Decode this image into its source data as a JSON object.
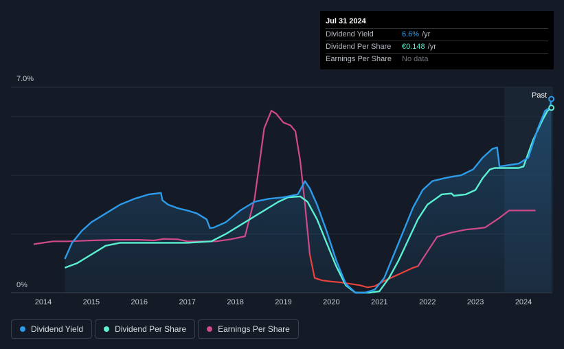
{
  "tooltip": {
    "date": "Jul 31 2024",
    "rows": [
      {
        "label": "Dividend Yield",
        "value": "6.6%",
        "unit": " /yr",
        "color": "#2d9be9"
      },
      {
        "label": "Dividend Per Share",
        "value": "€0.148",
        "unit": " /yr",
        "color": "#5cf0d2"
      },
      {
        "label": "Earnings Per Share",
        "value": "",
        "unit": "",
        "nodata": "No data"
      }
    ]
  },
  "past_label": "Past",
  "legend": [
    {
      "label": "Dividend Yield",
      "color": "#2d9be9"
    },
    {
      "label": "Dividend Per Share",
      "color": "#5cf0d2"
    },
    {
      "label": "Earnings Per Share",
      "color": "#d04a8a"
    }
  ],
  "chart_data": {
    "type": "line",
    "title": "",
    "xlabel": "",
    "ylabel": "",
    "xlim": [
      2013.8,
      2024.6
    ],
    "ylim": [
      0,
      7.0
    ],
    "y_tick_labels": [
      {
        "value": 7.0,
        "label": "7.0%"
      },
      {
        "value": 0,
        "label": "0%"
      }
    ],
    "x_ticks": [
      2014,
      2015,
      2016,
      2017,
      2018,
      2019,
      2020,
      2021,
      2022,
      2023,
      2024
    ],
    "x_tick_labels": [
      "2014",
      "2015",
      "2016",
      "2017",
      "2018",
      "2019",
      "2020",
      "2021",
      "2022",
      "2023",
      "2024"
    ],
    "past_region_start": 2023.6,
    "series": [
      {
        "name": "Dividend Yield",
        "color": "#2d9be9",
        "fill": true,
        "points": [
          [
            2014.45,
            1.15
          ],
          [
            2014.6,
            1.7
          ],
          [
            2014.8,
            2.1
          ],
          [
            2015.0,
            2.4
          ],
          [
            2015.3,
            2.7
          ],
          [
            2015.6,
            3.0
          ],
          [
            2015.9,
            3.2
          ],
          [
            2016.2,
            3.35
          ],
          [
            2016.45,
            3.4
          ],
          [
            2016.48,
            3.15
          ],
          [
            2016.6,
            3.0
          ],
          [
            2016.8,
            2.88
          ],
          [
            2017.0,
            2.8
          ],
          [
            2017.2,
            2.7
          ],
          [
            2017.4,
            2.5
          ],
          [
            2017.47,
            2.2
          ],
          [
            2017.55,
            2.22
          ],
          [
            2017.8,
            2.4
          ],
          [
            2018.1,
            2.8
          ],
          [
            2018.4,
            3.1
          ],
          [
            2018.7,
            3.2
          ],
          [
            2019.0,
            3.25
          ],
          [
            2019.3,
            3.35
          ],
          [
            2019.45,
            3.8
          ],
          [
            2019.55,
            3.55
          ],
          [
            2019.7,
            3.0
          ],
          [
            2019.9,
            2.1
          ],
          [
            2020.1,
            1.1
          ],
          [
            2020.3,
            0.3
          ],
          [
            2020.5,
            0.0
          ],
          [
            2020.7,
            0.0
          ],
          [
            2020.9,
            0.1
          ],
          [
            2021.1,
            0.5
          ],
          [
            2021.3,
            1.3
          ],
          [
            2021.5,
            2.1
          ],
          [
            2021.7,
            2.9
          ],
          [
            2021.9,
            3.5
          ],
          [
            2022.1,
            3.8
          ],
          [
            2022.35,
            3.9
          ],
          [
            2022.5,
            3.95
          ],
          [
            2022.7,
            4.0
          ],
          [
            2022.95,
            4.2
          ],
          [
            2023.15,
            4.6
          ],
          [
            2023.35,
            4.9
          ],
          [
            2023.45,
            4.95
          ],
          [
            2023.5,
            4.3
          ],
          [
            2023.7,
            4.35
          ],
          [
            2023.9,
            4.4
          ],
          [
            2024.1,
            4.6
          ],
          [
            2024.3,
            5.6
          ],
          [
            2024.45,
            6.2
          ],
          [
            2024.55,
            6.3
          ],
          [
            2024.58,
            6.6
          ]
        ]
      },
      {
        "name": "Dividend Per Share",
        "color": "#5cf0d2",
        "fill": false,
        "points": [
          [
            2014.45,
            0.85
          ],
          [
            2014.7,
            1.0
          ],
          [
            2015.0,
            1.3
          ],
          [
            2015.3,
            1.6
          ],
          [
            2015.6,
            1.7
          ],
          [
            2016.0,
            1.7
          ],
          [
            2016.5,
            1.7
          ],
          [
            2017.0,
            1.7
          ],
          [
            2017.5,
            1.75
          ],
          [
            2017.8,
            2.0
          ],
          [
            2018.1,
            2.3
          ],
          [
            2018.4,
            2.6
          ],
          [
            2018.7,
            2.9
          ],
          [
            2018.9,
            3.1
          ],
          [
            2019.1,
            3.25
          ],
          [
            2019.35,
            3.28
          ],
          [
            2019.5,
            3.1
          ],
          [
            2019.7,
            2.5
          ],
          [
            2019.9,
            1.7
          ],
          [
            2020.1,
            0.9
          ],
          [
            2020.3,
            0.25
          ],
          [
            2020.5,
            0.0
          ],
          [
            2020.8,
            0.0
          ],
          [
            2021.0,
            0.05
          ],
          [
            2021.2,
            0.5
          ],
          [
            2021.4,
            1.1
          ],
          [
            2021.6,
            1.8
          ],
          [
            2021.8,
            2.5
          ],
          [
            2022.0,
            3.0
          ],
          [
            2022.3,
            3.35
          ],
          [
            2022.5,
            3.38
          ],
          [
            2022.55,
            3.3
          ],
          [
            2022.8,
            3.35
          ],
          [
            2023.0,
            3.5
          ],
          [
            2023.15,
            3.9
          ],
          [
            2023.3,
            4.2
          ],
          [
            2023.4,
            4.25
          ],
          [
            2023.9,
            4.25
          ],
          [
            2024.0,
            4.3
          ],
          [
            2024.2,
            5.2
          ],
          [
            2024.4,
            5.9
          ],
          [
            2024.5,
            6.2
          ],
          [
            2024.58,
            6.3
          ]
        ]
      },
      {
        "name": "Earnings Per Share",
        "color": "#d04a8a",
        "fill": false,
        "points": [
          [
            2013.8,
            1.65
          ],
          [
            2014.0,
            1.7
          ],
          [
            2014.2,
            1.75
          ],
          [
            2014.5,
            1.75
          ],
          [
            2015.0,
            1.78
          ],
          [
            2015.5,
            1.8
          ],
          [
            2016.0,
            1.8
          ],
          [
            2016.3,
            1.78
          ],
          [
            2016.5,
            1.83
          ],
          [
            2016.8,
            1.82
          ],
          [
            2017.0,
            1.75
          ],
          [
            2017.3,
            1.75
          ],
          [
            2017.6,
            1.75
          ],
          [
            2017.9,
            1.82
          ],
          [
            2018.2,
            1.92
          ],
          [
            2018.4,
            3.2
          ],
          [
            2018.6,
            5.6
          ],
          [
            2018.75,
            6.2
          ],
          [
            2018.85,
            6.1
          ],
          [
            2019.0,
            5.8
          ],
          [
            2019.15,
            5.7
          ],
          [
            2019.25,
            5.5
          ],
          [
            2019.35,
            4.5
          ],
          [
            2019.45,
            3.0
          ],
          [
            2019.55,
            1.3
          ],
          [
            2019.65,
            0.5
          ],
          [
            2019.8,
            0.42
          ],
          [
            2020.0,
            0.38
          ],
          [
            2020.2,
            0.35
          ],
          [
            2020.4,
            0.3
          ],
          [
            2020.6,
            0.25
          ],
          [
            2020.75,
            0.18
          ],
          [
            2020.9,
            0.22
          ],
          [
            2021.1,
            0.4
          ],
          [
            2021.3,
            0.55
          ],
          [
            2021.5,
            0.7
          ],
          [
            2021.7,
            0.85
          ],
          [
            2021.8,
            0.9
          ],
          [
            2022.0,
            1.4
          ],
          [
            2022.2,
            1.9
          ],
          [
            2022.5,
            2.05
          ],
          [
            2022.8,
            2.15
          ],
          [
            2023.0,
            2.18
          ],
          [
            2023.2,
            2.22
          ],
          [
            2023.5,
            2.55
          ],
          [
            2023.7,
            2.8
          ],
          [
            2024.0,
            2.8
          ],
          [
            2024.25,
            2.8
          ]
        ],
        "highlight_color": "#e8423c",
        "highlight_range": [
          2019.55,
          2021.8
        ]
      }
    ]
  }
}
